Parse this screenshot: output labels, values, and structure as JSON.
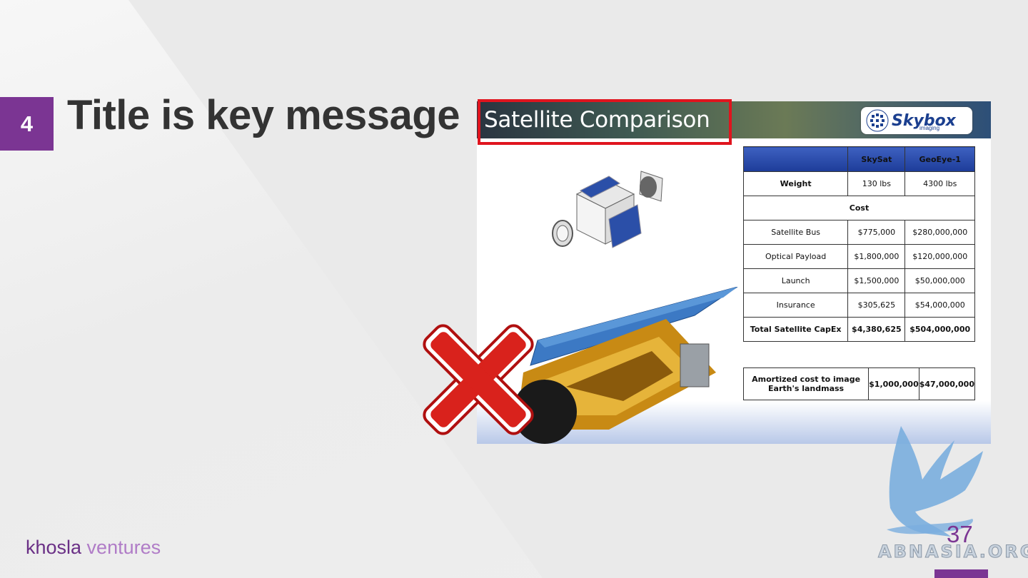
{
  "section_number": "4",
  "title": "Title is key message",
  "slide": {
    "title": "Satellite Comparison",
    "logo_text": "Skybox",
    "logo_sub": "imaging",
    "table": {
      "headers": [
        "",
        "SkySat",
        "GeoEye-1"
      ],
      "weight": {
        "label": "Weight",
        "skysat": "130 lbs",
        "geoeye": "4300 lbs"
      },
      "cost_label": "Cost",
      "rows": [
        {
          "label": "Satellite Bus",
          "skysat": "$775,000",
          "geoeye": "$280,000,000"
        },
        {
          "label": "Optical Payload",
          "skysat": "$1,800,000",
          "geoeye": "$120,000,000"
        },
        {
          "label": "Launch",
          "skysat": "$1,500,000",
          "geoeye": "$50,000,000"
        },
        {
          "label": "Insurance",
          "skysat": "$305,625",
          "geoeye": "$54,000,000"
        }
      ],
      "total": {
        "label": "Total Satellite CapEx",
        "skysat": "$4,380,625",
        "geoeye": "$504,000,000"
      }
    },
    "amortized": {
      "label": "Amortized cost to image Earth's landmass",
      "skysat": "$1,000,000",
      "geoeye": "$47,000,000"
    }
  },
  "footer": {
    "brand_1": "khosla",
    "brand_2": " ventures",
    "page": "37"
  },
  "watermark": "ABNASIA.ORG",
  "colors": {
    "accent": "#7b3593",
    "highlight": "#e0141e",
    "table_header": "#1d3c99"
  }
}
